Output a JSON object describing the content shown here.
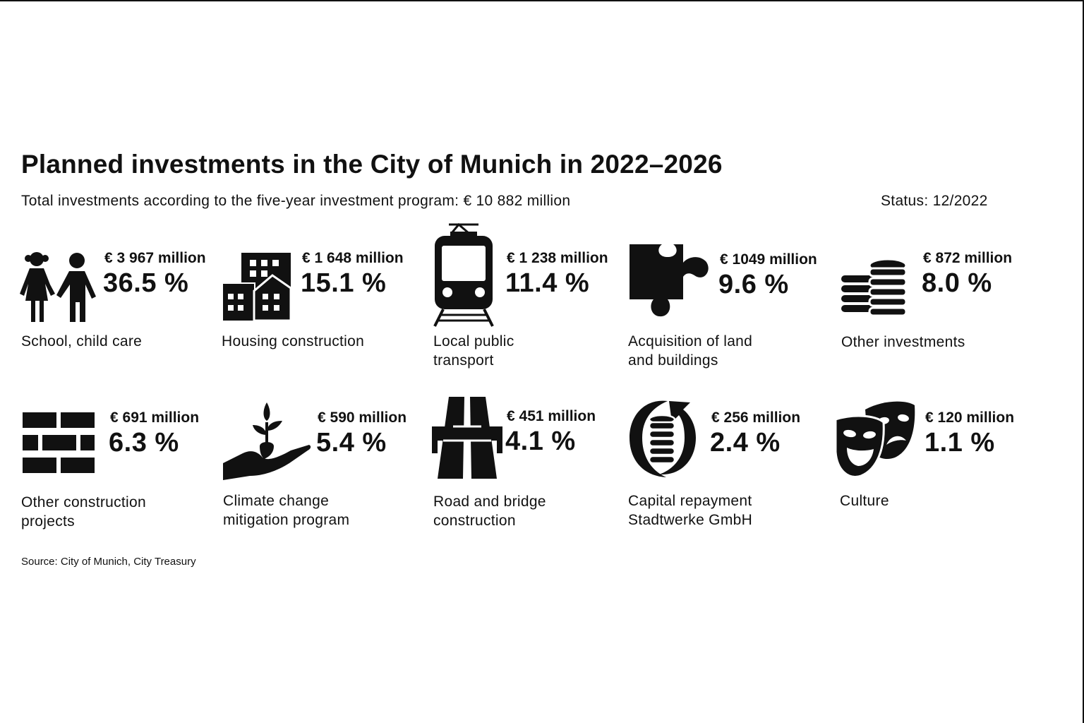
{
  "header": {
    "title": "Planned investments in the City of Munich in 2022–2026",
    "subtitle": "Total investments according to the five-year investment program: € 10 882 million",
    "status": "Status: 12/2022"
  },
  "footer": {
    "source": "Source: City of Munich, City Treasury"
  },
  "chart_data": {
    "type": "table",
    "title": "Planned investments in the City of Munich in 2022–2026",
    "total": "€ 10 882 million",
    "unit": "million €",
    "categories": [
      "School, child care",
      "Housing construction",
      "Local public transport",
      "Acquisition of land and buildings",
      "Other investments",
      "Other construction projects",
      "Climate change mitigation program",
      "Road and bridge construction",
      "Capital repayment Stadtwerke GmbH",
      "Culture"
    ],
    "values": [
      3967,
      1648,
      1238,
      1049,
      872,
      691,
      590,
      451,
      256,
      120
    ],
    "percent": [
      36.5,
      15.1,
      11.4,
      9.6,
      8.0,
      6.3,
      5.4,
      4.1,
      2.4,
      1.1
    ],
    "items": [
      {
        "label": "School, child care",
        "amount": "€ 3 967 million",
        "percent": "36.5 %",
        "icon": "children-icon"
      },
      {
        "label": "Housing construction",
        "amount": "€ 1 648 million",
        "percent": "15.1 %",
        "icon": "buildings-icon"
      },
      {
        "label": "Local public\ntransport",
        "amount": "€ 1 238 million",
        "percent": "11.4 %",
        "icon": "tram-icon"
      },
      {
        "label": "Acquisition of land\nand buildings",
        "amount": "€ 1049 million",
        "percent": "9.6 %",
        "icon": "puzzle-piece-icon"
      },
      {
        "label": "Other investments",
        "amount": "€ 872 million",
        "percent": "8.0 %",
        "icon": "coins-icon"
      },
      {
        "label": "Other construction\nprojects",
        "amount": "€ 691 million",
        "percent": "6.3 %",
        "icon": "bricks-icon"
      },
      {
        "label": "Climate change\nmitigation program",
        "amount": "€ 590 million",
        "percent": "5.4 %",
        "icon": "seedling-hand-icon"
      },
      {
        "label": "Road and bridge\nconstruction",
        "amount": "€ 451 million",
        "percent": "4.1 %",
        "icon": "highway-icon"
      },
      {
        "label": "Capital repayment\nStadtwerke GmbH",
        "amount": "€ 256 million",
        "percent": "2.4 %",
        "icon": "coin-cycle-icon"
      },
      {
        "label": "Culture",
        "amount": "€ 120 million",
        "percent": "1.1 %",
        "icon": "theater-masks-icon"
      }
    ]
  }
}
